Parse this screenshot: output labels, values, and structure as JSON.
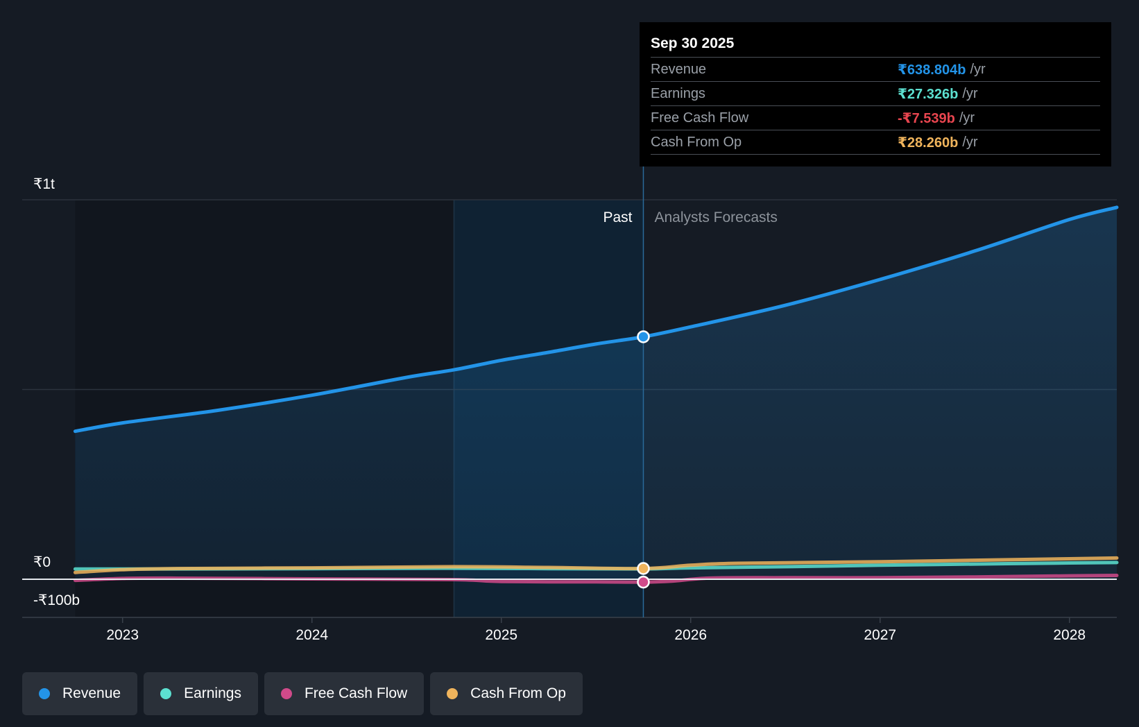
{
  "tooltip": {
    "date": "Sep 30 2025",
    "rows": [
      {
        "label": "Revenue",
        "value": "₹638.804b",
        "unit": "/yr",
        "color": "#2394e8"
      },
      {
        "label": "Earnings",
        "value": "₹27.326b",
        "unit": "/yr",
        "color": "#5ce0d0"
      },
      {
        "label": "Free Cash Flow",
        "value": "-₹7.539b",
        "unit": "/yr",
        "color": "#e8454f"
      },
      {
        "label": "Cash From Op",
        "value": "₹28.260b",
        "unit": "/yr",
        "color": "#f0b45c"
      }
    ]
  },
  "legend": [
    {
      "label": "Revenue",
      "color": "#2394e8"
    },
    {
      "label": "Earnings",
      "color": "#5ce0d0"
    },
    {
      "label": "Free Cash Flow",
      "color": "#d04a8a"
    },
    {
      "label": "Cash From Op",
      "color": "#f0b45c"
    }
  ],
  "chart_data": {
    "type": "line",
    "y_unit": "₹ billions",
    "ylim": [
      -100,
      1000
    ],
    "y_ticks": [
      {
        "value": 1000,
        "label": "₹1t"
      },
      {
        "value": 0,
        "label": "₹0"
      },
      {
        "value": -100,
        "label": "-₹100b"
      }
    ],
    "x_range": [
      2022.47,
      2028.25
    ],
    "x_ticks": [
      {
        "value": 2023,
        "label": "2023"
      },
      {
        "value": 2024,
        "label": "2024"
      },
      {
        "value": 2025,
        "label": "2025"
      },
      {
        "value": 2026,
        "label": "2026"
      },
      {
        "value": 2027,
        "label": "2027"
      },
      {
        "value": 2028,
        "label": "2028"
      }
    ],
    "past_label": "Past",
    "forecast_label": "Analysts Forecasts",
    "highlight_start": 2024.75,
    "divider_x": 2025.75,
    "series": [
      {
        "name": "Revenue",
        "color": "#2394e8",
        "area": true,
        "points": [
          [
            2022.75,
            390
          ],
          [
            2023,
            412
          ],
          [
            2023.5,
            445
          ],
          [
            2024,
            485
          ],
          [
            2024.5,
            532
          ],
          [
            2024.75,
            552
          ],
          [
            2025,
            577
          ],
          [
            2025.25,
            598
          ],
          [
            2025.5,
            620
          ],
          [
            2025.75,
            639
          ],
          [
            2026,
            665
          ],
          [
            2026.5,
            722
          ],
          [
            2027,
            790
          ],
          [
            2027.5,
            865
          ],
          [
            2028,
            948
          ],
          [
            2028.25,
            980
          ]
        ]
      },
      {
        "name": "Earnings",
        "color": "#5ce0d0",
        "area": false,
        "points": [
          [
            2022.75,
            27
          ],
          [
            2023,
            27
          ],
          [
            2024,
            28
          ],
          [
            2024.75,
            29
          ],
          [
            2025.25,
            28
          ],
          [
            2025.75,
            27.3
          ],
          [
            2026,
            30
          ],
          [
            2026.5,
            33
          ],
          [
            2027,
            37
          ],
          [
            2027.5,
            40
          ],
          [
            2028,
            43
          ],
          [
            2028.25,
            44
          ]
        ]
      },
      {
        "name": "Free Cash Flow",
        "color": "#d04a8a",
        "area": false,
        "points": [
          [
            2022.75,
            -3
          ],
          [
            2023,
            2
          ],
          [
            2023.25,
            3
          ],
          [
            2024,
            1
          ],
          [
            2024.75,
            -1
          ],
          [
            2025,
            -6
          ],
          [
            2025.5,
            -7
          ],
          [
            2025.75,
            -7.5
          ],
          [
            2025.9,
            -5
          ],
          [
            2026.1,
            3
          ],
          [
            2026.5,
            4
          ],
          [
            2027,
            4
          ],
          [
            2027.5,
            6
          ],
          [
            2028,
            9
          ],
          [
            2028.25,
            10
          ]
        ]
      },
      {
        "name": "Cash From Op",
        "color": "#f0b45c",
        "area": false,
        "points": [
          [
            2022.75,
            18
          ],
          [
            2023,
            25
          ],
          [
            2023.25,
            28
          ],
          [
            2024,
            30
          ],
          [
            2024.75,
            33
          ],
          [
            2025.25,
            31
          ],
          [
            2025.75,
            28.3
          ],
          [
            2026,
            37
          ],
          [
            2026.25,
            42
          ],
          [
            2027,
            46
          ],
          [
            2027.5,
            50
          ],
          [
            2028,
            54
          ],
          [
            2028.25,
            56
          ]
        ]
      }
    ]
  }
}
